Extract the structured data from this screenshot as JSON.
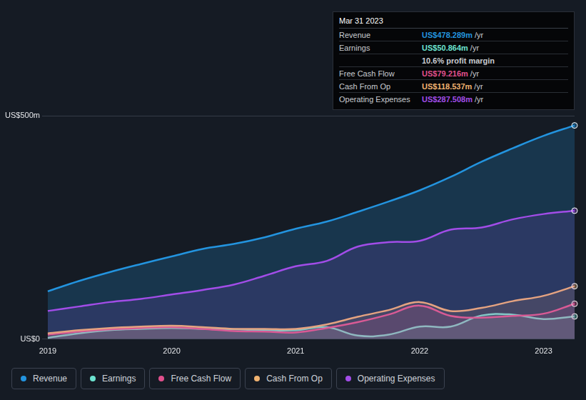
{
  "chart_data": {
    "type": "line",
    "categories": [
      "2019",
      null,
      null,
      null,
      "2020",
      null,
      null,
      null,
      "2021",
      null,
      null,
      null,
      "2022",
      null,
      null,
      null,
      "2023",
      null
    ],
    "series": [
      {
        "name": "Revenue",
        "color": "#2394df",
        "values": [
          107,
          130,
          150,
          168,
          185,
          202,
          213,
          228,
          247,
          263,
          285,
          308,
          333,
          363,
          397,
          427,
          455,
          478.289
        ]
      },
      {
        "name": "Earnings",
        "color": "#6ce3d0",
        "values": [
          3,
          13,
          20,
          23,
          25,
          23,
          22,
          20,
          20,
          27,
          8,
          10,
          28,
          28,
          53,
          55,
          45,
          50.864
        ]
      },
      {
        "name": "Free Cash Flow",
        "color": "#e0508c",
        "values": [
          10,
          17,
          22,
          25,
          27,
          23,
          18,
          17,
          15,
          25,
          38,
          55,
          75,
          52,
          48,
          52,
          57,
          79.216
        ]
      },
      {
        "name": "Cash From Op",
        "color": "#f0b270",
        "values": [
          13,
          20,
          25,
          28,
          30,
          27,
          23,
          23,
          23,
          33,
          50,
          65,
          83,
          63,
          70,
          85,
          97,
          118.537
        ]
      },
      {
        "name": "Operating Expenses",
        "color": "#a24de8",
        "values": [
          63,
          73,
          83,
          90,
          100,
          110,
          122,
          142,
          163,
          175,
          207,
          217,
          220,
          245,
          250,
          268,
          280,
          287.508
        ]
      }
    ],
    "ylim": [
      0,
      500
    ],
    "yticks": [
      {
        "value": 0,
        "label": "US$0"
      },
      {
        "value": 500,
        "label": "US$500m"
      }
    ],
    "grid": true,
    "legend": "bottom",
    "annotations": [
      {
        "title": "Mar 31 2023",
        "rows": [
          {
            "label": "Revenue",
            "value": "US$478.289m",
            "unit": "/yr",
            "color": "#2394df"
          },
          {
            "label": "Earnings",
            "value": "US$50.864m",
            "unit": "/yr",
            "color": "#6ce3d0"
          },
          {
            "note": "10.6% profit margin"
          },
          {
            "label": "Free Cash Flow",
            "value": "US$79.216m",
            "unit": "/yr",
            "color": "#e0508c"
          },
          {
            "label": "Cash From Op",
            "value": "US$118.537m",
            "unit": "/yr",
            "color": "#f0b270"
          },
          {
            "label": "Operating Expenses",
            "value": "US$287.508m",
            "unit": "/yr",
            "color": "#a24de8"
          }
        ]
      }
    ]
  }
}
